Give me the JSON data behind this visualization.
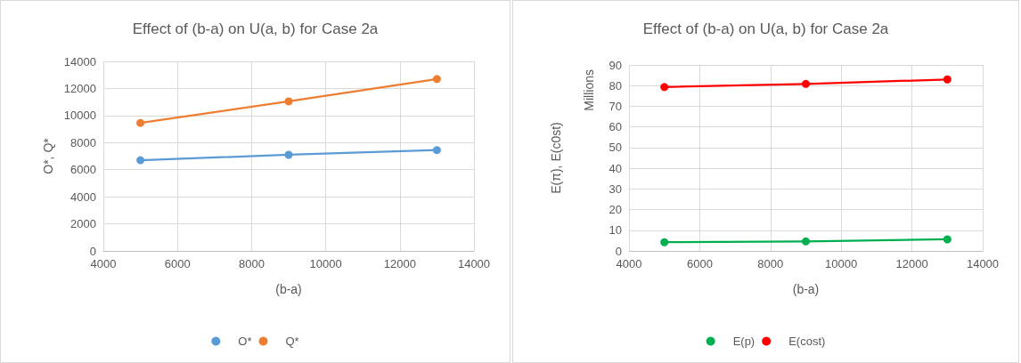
{
  "chart_data": [
    {
      "type": "line",
      "title": "Effect of (b-a) on U(a, b) for Case 2a",
      "xlabel": "(b-a)",
      "ylabel": "O*, Q*",
      "x": [
        5000,
        9000,
        13000
      ],
      "series": [
        {
          "name": "O*",
          "color": "#5b9bd5",
          "values": [
            6700,
            7100,
            7450
          ]
        },
        {
          "name": "Q*",
          "color": "#ed7d31",
          "values": [
            9450,
            11050,
            12700
          ]
        }
      ],
      "xlim": [
        4000,
        14000
      ],
      "xticks": [
        4000,
        6000,
        8000,
        10000,
        12000,
        14000
      ],
      "ylim": [
        0,
        14000
      ],
      "yticks": [
        0,
        2000,
        4000,
        6000,
        8000,
        10000,
        12000,
        14000
      ],
      "grid": true,
      "legend": "bottom",
      "marker": "circle",
      "line_style": "solid"
    },
    {
      "type": "line",
      "title": "Effect of (b-a) on U(a, b) for Case 2a",
      "xlabel": "(b-a)",
      "ylabel": "E(π), E(c0st)",
      "annotations": [
        "Millions"
      ],
      "x": [
        5000,
        9000,
        13000
      ],
      "series": [
        {
          "name": "E(p)",
          "color": "#00b050",
          "values": [
            4.2,
            4.6,
            5.6
          ]
        },
        {
          "name": "E(cost)",
          "color": "#ff0000",
          "values": [
            79.3,
            80.8,
            83.0
          ]
        }
      ],
      "xlim": [
        4000,
        14000
      ],
      "xticks": [
        4000,
        6000,
        8000,
        10000,
        12000,
        14000
      ],
      "ylim": [
        0,
        90
      ],
      "yticks": [
        0,
        10,
        20,
        30,
        40,
        50,
        60,
        70,
        80,
        90
      ],
      "grid": true,
      "legend": "bottom",
      "marker": "circle",
      "line_style": "solid"
    }
  ]
}
